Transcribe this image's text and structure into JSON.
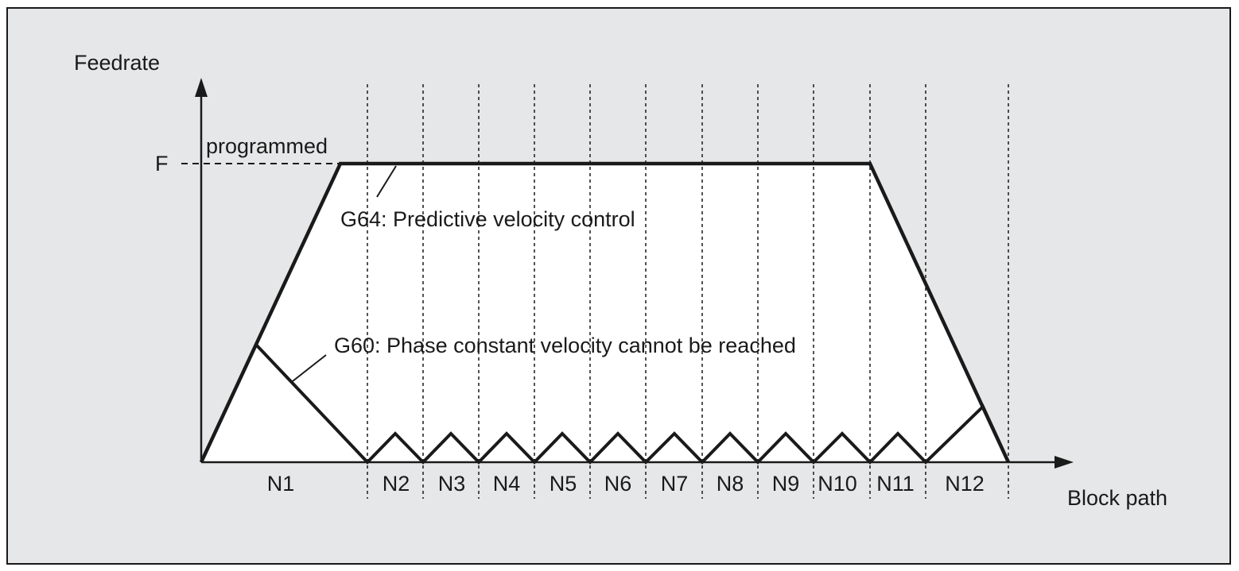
{
  "diagram": {
    "y_axis_label": "Feedrate",
    "x_axis_label": "Block path",
    "f_label": "F",
    "programmed_label": "programmed",
    "g64_label": "G64: Predictive velocity control",
    "g60_label": "G60: Phase constant velocity cannot be reached",
    "blocks": [
      "N1",
      "N2",
      "N3",
      "N4",
      "N5",
      "N6",
      "N7",
      "N8",
      "N9",
      "N10",
      "N11",
      "N12"
    ]
  }
}
